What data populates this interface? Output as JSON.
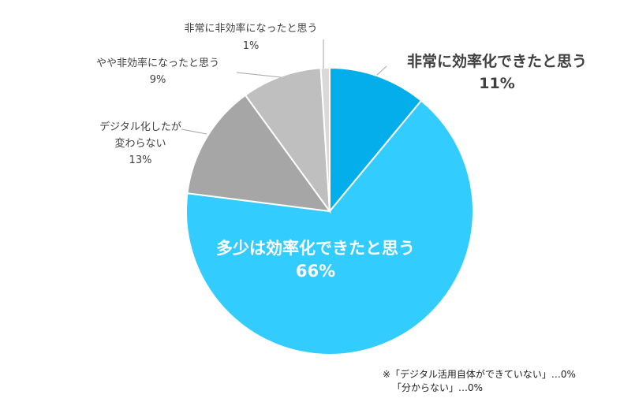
{
  "chart_data": {
    "type": "pie",
    "start_angle_deg": 90,
    "direction": "clockwise",
    "slices": [
      {
        "label_lines": [
          "非常に効率化できたと思う"
        ],
        "value": 11,
        "value_label": "11%",
        "color": "#03aeea",
        "label_style": "big"
      },
      {
        "label_lines": [
          "多少は効率化できたと思う"
        ],
        "value": 66,
        "value_label": "66%",
        "color": "#33ccff",
        "label_style": "inside"
      },
      {
        "label_lines": [
          "デジタル化したが",
          "変わらない"
        ],
        "value": 13,
        "value_label": "13%",
        "color": "#a6a6a6",
        "label_style": "small"
      },
      {
        "label_lines": [
          "やや非効率になったと思う"
        ],
        "value": 9,
        "value_label": "9%",
        "color": "#bfbfbf",
        "label_style": "small"
      },
      {
        "label_lines": [
          "非常に非効率になったと思う"
        ],
        "value": 1,
        "value_label": "1%",
        "color": "#d9d9d9",
        "label_style": "small"
      }
    ],
    "legend": "none"
  },
  "note": {
    "line1": "※「デジタル活用自体ができていない」…0%",
    "line2": "「分からない」…0%"
  }
}
